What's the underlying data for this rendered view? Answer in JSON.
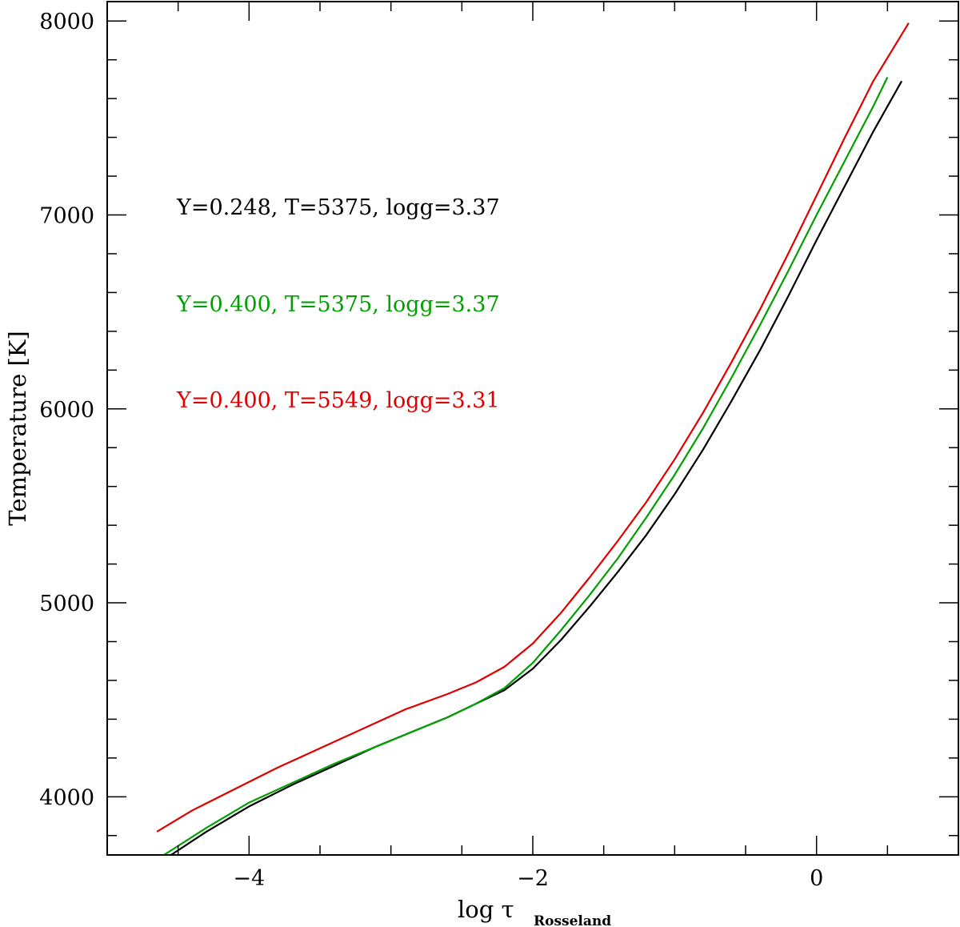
{
  "chart_data": {
    "type": "line",
    "xlabel": "log τ",
    "xlabel_subscript": "Rosseland",
    "ylabel": "Temperature [K]",
    "xlim": [
      -5.0,
      1.0
    ],
    "ylim": [
      3700,
      8100
    ],
    "x_major_ticks": [
      -4,
      -2,
      0
    ],
    "x_tick_labels": [
      "−4",
      "−2",
      "0"
    ],
    "y_major_ticks": [
      4000,
      5000,
      6000,
      7000,
      8000
    ],
    "y_tick_labels": [
      "4000",
      "5000",
      "6000",
      "7000",
      "8000"
    ],
    "grid": false,
    "legend_placement": "upper-left",
    "series": [
      {
        "name": "Y=0.248, T=5375, logg=3.37",
        "color": "#000000",
        "x": [
          -4.55,
          -4.3,
          -4.0,
          -3.7,
          -3.4,
          -3.1,
          -2.8,
          -2.6,
          -2.4,
          -2.2,
          -2.0,
          -1.8,
          -1.6,
          -1.4,
          -1.2,
          -1.0,
          -0.8,
          -0.6,
          -0.4,
          -0.2,
          0.0,
          0.2,
          0.4,
          0.6
        ],
        "y": [
          3700,
          3820,
          3950,
          4060,
          4160,
          4260,
          4350,
          4410,
          4480,
          4550,
          4660,
          4810,
          4980,
          5160,
          5350,
          5560,
          5790,
          6040,
          6300,
          6580,
          6870,
          7150,
          7430,
          7690
        ]
      },
      {
        "name": "Y=0.400, T=5375, logg=3.37",
        "color": "#00a000",
        "x": [
          -4.6,
          -4.3,
          -4.0,
          -3.7,
          -3.4,
          -3.1,
          -2.8,
          -2.6,
          -2.4,
          -2.2,
          -2.0,
          -1.8,
          -1.6,
          -1.4,
          -1.2,
          -1.0,
          -0.8,
          -0.6,
          -0.4,
          -0.2,
          0.0,
          0.2,
          0.4,
          0.5
        ],
        "y": [
          3700,
          3840,
          3970,
          4070,
          4170,
          4260,
          4350,
          4410,
          4480,
          4560,
          4690,
          4860,
          5040,
          5230,
          5440,
          5660,
          5900,
          6160,
          6430,
          6710,
          7000,
          7280,
          7560,
          7710
        ]
      },
      {
        "name": "Y=0.400, T=5549, logg=3.31",
        "color": "#e00000",
        "x": [
          -4.65,
          -4.4,
          -4.1,
          -3.8,
          -3.5,
          -3.2,
          -2.9,
          -2.6,
          -2.4,
          -2.2,
          -2.0,
          -1.8,
          -1.6,
          -1.4,
          -1.2,
          -1.0,
          -0.8,
          -0.6,
          -0.4,
          -0.2,
          0.0,
          0.2,
          0.4,
          0.65
        ],
        "y": [
          3820,
          3930,
          4040,
          4150,
          4250,
          4350,
          4450,
          4530,
          4590,
          4670,
          4790,
          4950,
          5130,
          5320,
          5520,
          5740,
          5980,
          6240,
          6510,
          6800,
          7100,
          7400,
          7690,
          7990
        ]
      }
    ]
  }
}
